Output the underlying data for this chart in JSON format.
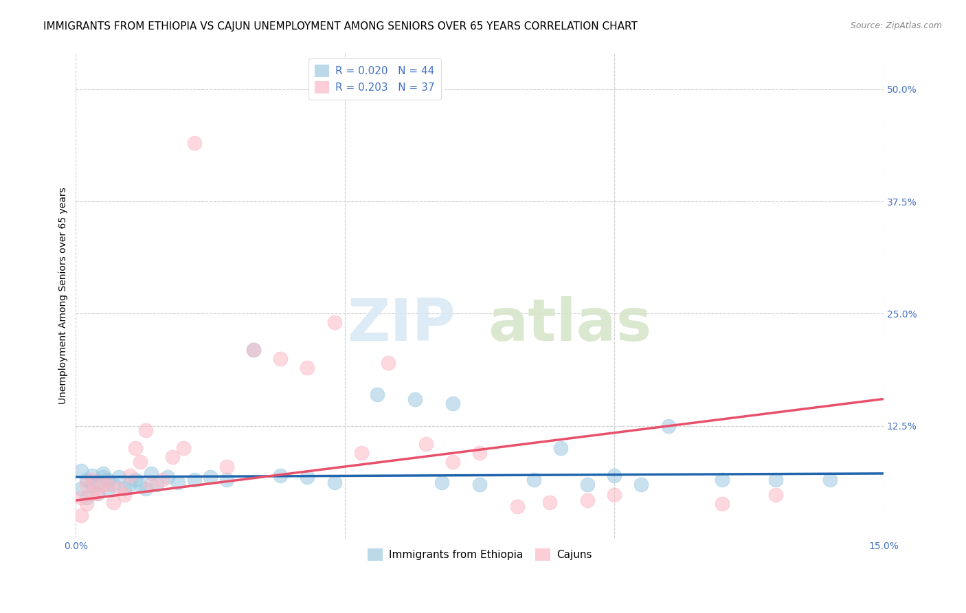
{
  "title": "IMMIGRANTS FROM ETHIOPIA VS CAJUN UNEMPLOYMENT AMONG SENIORS OVER 65 YEARS CORRELATION CHART",
  "source": "Source: ZipAtlas.com",
  "ylabel": "Unemployment Among Seniors over 65 years",
  "xlim": [
    0.0,
    0.15
  ],
  "ylim": [
    0.0,
    0.54
  ],
  "xticks": [
    0.0,
    0.05,
    0.1,
    0.15
  ],
  "xtick_labels": [
    "0.0%",
    "",
    "",
    "15.0%"
  ],
  "ytick_vals_right": [
    0.5,
    0.375,
    0.25,
    0.125
  ],
  "ytick_labels_right": [
    "50.0%",
    "37.5%",
    "25.0%",
    "12.5%"
  ],
  "color_blue": "#9ecae1",
  "color_pink": "#fcb9c6",
  "line_color_blue": "#2166ac",
  "line_color_pink": "#e8506a",
  "scatter_blue_x": [
    0.001,
    0.001,
    0.002,
    0.002,
    0.003,
    0.003,
    0.004,
    0.004,
    0.005,
    0.005,
    0.006,
    0.006,
    0.007,
    0.008,
    0.009,
    0.01,
    0.011,
    0.012,
    0.013,
    0.014,
    0.015,
    0.017,
    0.019,
    0.022,
    0.025,
    0.028,
    0.033,
    0.038,
    0.043,
    0.048,
    0.056,
    0.063,
    0.068,
    0.07,
    0.075,
    0.085,
    0.09,
    0.095,
    0.1,
    0.105,
    0.11,
    0.12,
    0.13,
    0.14
  ],
  "scatter_blue_y": [
    0.075,
    0.055,
    0.065,
    0.045,
    0.07,
    0.058,
    0.06,
    0.05,
    0.068,
    0.072,
    0.055,
    0.065,
    0.06,
    0.068,
    0.055,
    0.06,
    0.065,
    0.06,
    0.055,
    0.072,
    0.06,
    0.068,
    0.062,
    0.065,
    0.068,
    0.065,
    0.21,
    0.07,
    0.068,
    0.062,
    0.16,
    0.155,
    0.062,
    0.15,
    0.06,
    0.065,
    0.1,
    0.06,
    0.07,
    0.06,
    0.125,
    0.065,
    0.065,
    0.065
  ],
  "scatter_pink_x": [
    0.001,
    0.001,
    0.002,
    0.002,
    0.003,
    0.003,
    0.004,
    0.005,
    0.006,
    0.007,
    0.008,
    0.009,
    0.01,
    0.011,
    0.012,
    0.013,
    0.014,
    0.016,
    0.018,
    0.02,
    0.022,
    0.028,
    0.033,
    0.038,
    0.043,
    0.048,
    0.053,
    0.058,
    0.065,
    0.07,
    0.075,
    0.082,
    0.088,
    0.095,
    0.1,
    0.12,
    0.13
  ],
  "scatter_pink_y": [
    0.045,
    0.025,
    0.06,
    0.038,
    0.065,
    0.05,
    0.05,
    0.06,
    0.06,
    0.04,
    0.055,
    0.048,
    0.07,
    0.1,
    0.085,
    0.12,
    0.06,
    0.065,
    0.09,
    0.1,
    0.44,
    0.08,
    0.21,
    0.2,
    0.19,
    0.24,
    0.095,
    0.195,
    0.105,
    0.085,
    0.095,
    0.035,
    0.04,
    0.042,
    0.048,
    0.038,
    0.048
  ],
  "blue_trendline_x": [
    0.0,
    0.15
  ],
  "blue_trendline_y": [
    0.068,
    0.072
  ],
  "pink_trendline_x": [
    0.0,
    0.15
  ],
  "pink_trendline_y": [
    0.042,
    0.155
  ],
  "watermark_line1": "ZIP",
  "watermark_line2": "atlas",
  "title_fontsize": 11,
  "axis_label_fontsize": 10,
  "tick_fontsize": 10,
  "legend_fontsize": 11,
  "source_fontsize": 9
}
